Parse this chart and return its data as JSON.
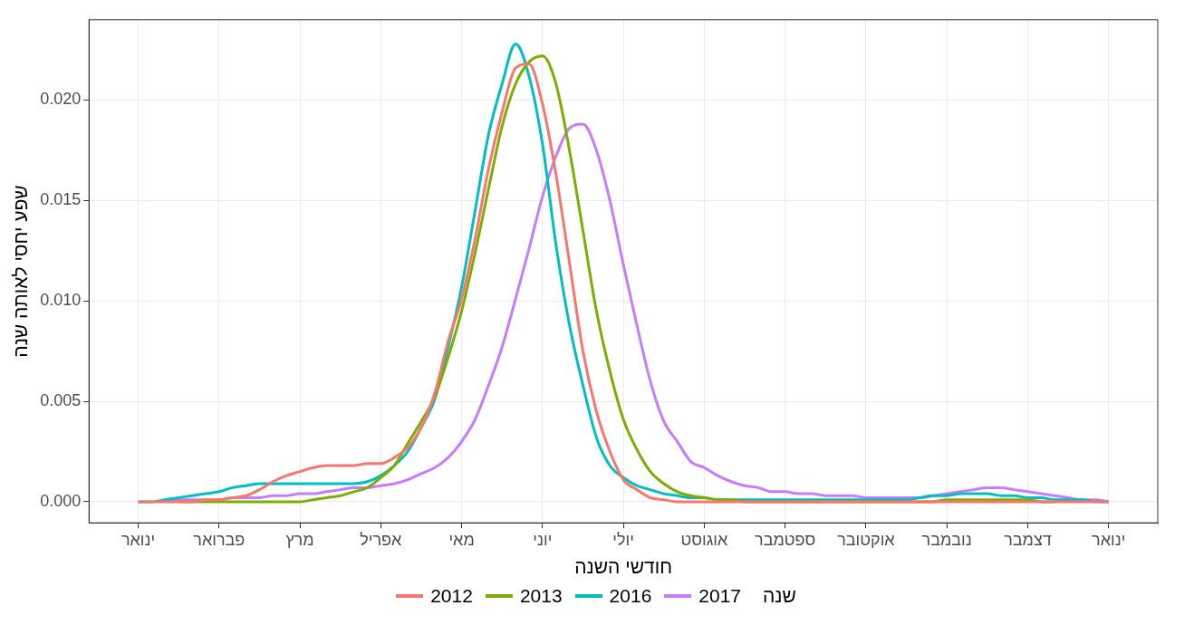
{
  "chart_data": {
    "type": "line",
    "xlabel": "חודשי השנה",
    "ylabel": "שפע יחסי לאותה שנה",
    "legend_title": "שנה",
    "legend": "bottom",
    "grid": true,
    "marker": "none",
    "line_style": "solid",
    "categories": [
      "ינואר",
      null,
      null,
      null,
      null,
      null,
      "פברואר",
      null,
      null,
      null,
      null,
      null,
      "מרץ",
      null,
      null,
      null,
      null,
      null,
      "אפריל",
      null,
      null,
      null,
      null,
      null,
      "מאי",
      null,
      null,
      null,
      null,
      null,
      "יוני",
      null,
      null,
      null,
      null,
      null,
      "יולי",
      null,
      null,
      null,
      null,
      null,
      "אוגוסט",
      null,
      null,
      null,
      null,
      null,
      "ספטמבר",
      null,
      null,
      null,
      null,
      null,
      "אוקטובר",
      null,
      null,
      null,
      null,
      null,
      "נובמבר",
      null,
      null,
      null,
      null,
      null,
      "דצמבר",
      null,
      null,
      null,
      null,
      null,
      "ינואר"
    ],
    "ylim": [
      -0.00105,
      0.024
    ],
    "yticks": [
      {
        "value": 0,
        "label": "0.000"
      },
      {
        "value": 0.005,
        "label": "0.005"
      },
      {
        "value": 0.01,
        "label": "0.010"
      },
      {
        "value": 0.015,
        "label": "0.015"
      },
      {
        "value": 0.02,
        "label": "0.020"
      }
    ],
    "series": [
      {
        "name": "2012",
        "color": "#f8766d",
        "values": [
          0,
          0,
          0,
          0,
          0,
          0.0001,
          0.0001,
          0.0002,
          0.0003,
          0.0006,
          0.001,
          0.0013,
          0.0015,
          0.0017,
          0.0018,
          0.0018,
          0.0018,
          0.0019,
          0.0019,
          0.0022,
          0.0027,
          0.0037,
          0.0054,
          0.008,
          0.0101,
          0.0131,
          0.0166,
          0.0194,
          0.0216,
          0.0218,
          0.0198,
          0.0163,
          0.0119,
          0.0075,
          0.0045,
          0.0025,
          0.0011,
          0.0006,
          0.0002,
          0.0001,
          0,
          0,
          0,
          0,
          0,
          0,
          0,
          0,
          0,
          0,
          0,
          0,
          0,
          0,
          0,
          0,
          0,
          0,
          0,
          0,
          0,
          0,
          0,
          0,
          0,
          0,
          0,
          0,
          0,
          0,
          0,
          0,
          0
        ]
      },
      {
        "name": "2013",
        "color": "#7cae00",
        "values": [
          null,
          null,
          null,
          0,
          0,
          0,
          0,
          0,
          0,
          0,
          0,
          0,
          0,
          0.0001,
          0.0002,
          0.0003,
          0.0005,
          0.0007,
          0.0012,
          0.0018,
          0.0029,
          0.004,
          0.0052,
          0.0072,
          0.0095,
          0.0124,
          0.0156,
          0.0187,
          0.0208,
          0.0219,
          0.0222,
          0.0208,
          0.0175,
          0.0135,
          0.0095,
          0.0065,
          0.0041,
          0.0026,
          0.0015,
          0.0009,
          0.0005,
          0.0003,
          0.0002,
          0.0001,
          0.0001,
          0,
          0,
          0,
          0,
          0,
          0,
          0,
          0,
          0,
          0,
          0,
          0,
          0,
          0,
          0,
          0.0001,
          0.0001,
          0.0001,
          0.0001,
          0.0001,
          0.0001,
          0.0001,
          0,
          0,
          null,
          null,
          null,
          null
        ]
      },
      {
        "name": "2016",
        "color": "#00bfc4",
        "values": [
          0,
          0,
          0.0001,
          0.0002,
          0.0003,
          0.0004,
          0.0005,
          0.0007,
          0.0008,
          0.0009,
          0.0009,
          0.0009,
          0.0009,
          0.0009,
          0.0009,
          0.0009,
          0.0009,
          0.001,
          0.0013,
          0.0018,
          0.0025,
          0.0037,
          0.0051,
          0.0077,
          0.0107,
          0.0145,
          0.0183,
          0.0208,
          0.0228,
          0.0212,
          0.0178,
          0.0128,
          0.0088,
          0.0058,
          0.0032,
          0.0018,
          0.0012,
          0.0008,
          0.0006,
          0.0004,
          0.0003,
          0.0002,
          0.0002,
          0.0001,
          0.0001,
          0.0001,
          0.0001,
          0.0001,
          0.0001,
          0.0001,
          0.0001,
          0.0001,
          0.0001,
          0.0001,
          0.0001,
          0.0001,
          0.0001,
          0.0001,
          0.0002,
          0.0003,
          0.0003,
          0.0004,
          0.0004,
          0.0004,
          0.0003,
          0.0003,
          0.0002,
          0.0002,
          0.0001,
          0.0001,
          0.0001,
          0,
          0
        ]
      },
      {
        "name": "2017",
        "color": "#c77cff",
        "values": [
          null,
          null,
          0,
          0.0001,
          0.0001,
          0.0001,
          0.0001,
          0.0002,
          0.0002,
          0.0002,
          0.0003,
          0.0003,
          0.0004,
          0.0004,
          0.0005,
          0.0006,
          0.0007,
          0.0007,
          0.0008,
          0.0009,
          0.0011,
          0.0014,
          0.0017,
          0.0022,
          0.003,
          0.0041,
          0.0058,
          0.0077,
          0.0101,
          0.0126,
          0.0152,
          0.0172,
          0.0186,
          0.0188,
          0.0175,
          0.015,
          0.0118,
          0.0088,
          0.006,
          0.004,
          0.003,
          0.002,
          0.0017,
          0.0013,
          0.001,
          0.0008,
          0.0007,
          0.0005,
          0.0005,
          0.0004,
          0.0004,
          0.0003,
          0.0003,
          0.0003,
          0.0002,
          0.0002,
          0.0002,
          0.0002,
          0.0002,
          0.0003,
          0.0004,
          0.0005,
          0.0006,
          0.0007,
          0.0007,
          0.0006,
          0.0005,
          0.0004,
          0.0003,
          0.0002,
          0.0001,
          0.0001,
          0
        ]
      }
    ]
  }
}
